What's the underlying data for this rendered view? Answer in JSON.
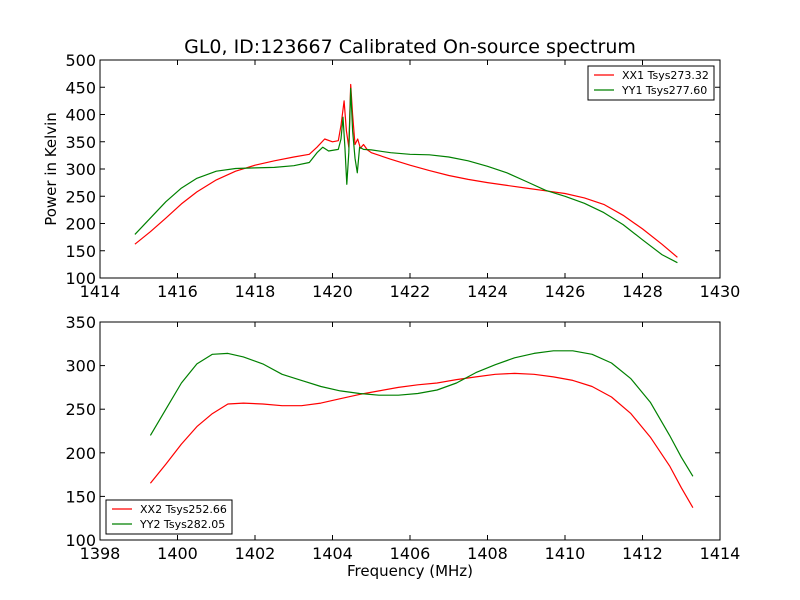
{
  "figure_title": "GL0, ID:123667 Calibrated On-source spectrum",
  "chart_data": [
    {
      "type": "line",
      "title": "GL0, ID:123667 Calibrated On-source spectrum",
      "xlabel": "",
      "ylabel": "Power in Kelvin",
      "xlim": [
        1414,
        1430
      ],
      "ylim": [
        100,
        500
      ],
      "xticks": [
        1414,
        1416,
        1418,
        1420,
        1422,
        1424,
        1426,
        1428,
        1430
      ],
      "yticks": [
        100,
        150,
        200,
        250,
        300,
        350,
        400,
        450,
        500
      ],
      "legend": "top-right",
      "grid": false,
      "series": [
        {
          "name": "XX1 Tsys273.32",
          "color": "#ff0000",
          "points": [
            [
              1414.9,
              162
            ],
            [
              1415.3,
              185
            ],
            [
              1415.7,
              210
            ],
            [
              1416.1,
              236
            ],
            [
              1416.5,
              258
            ],
            [
              1417.0,
              280
            ],
            [
              1417.5,
              296
            ],
            [
              1418.0,
              307
            ],
            [
              1418.5,
              315
            ],
            [
              1419.0,
              322
            ],
            [
              1419.4,
              327
            ],
            [
              1419.6,
              340
            ],
            [
              1419.8,
              355
            ],
            [
              1420.0,
              350
            ],
            [
              1420.15,
              352
            ],
            [
              1420.22,
              380
            ],
            [
              1420.3,
              425
            ],
            [
              1420.36,
              370
            ],
            [
              1420.42,
              340
            ],
            [
              1420.47,
              455
            ],
            [
              1420.52,
              400
            ],
            [
              1420.58,
              345
            ],
            [
              1420.65,
              355
            ],
            [
              1420.72,
              338
            ],
            [
              1420.8,
              345
            ],
            [
              1420.9,
              335
            ],
            [
              1421.0,
              330
            ],
            [
              1421.5,
              318
            ],
            [
              1422.0,
              307
            ],
            [
              1422.5,
              297
            ],
            [
              1423.0,
              288
            ],
            [
              1423.5,
              281
            ],
            [
              1424.0,
              275
            ],
            [
              1424.5,
              270
            ],
            [
              1425.0,
              265
            ],
            [
              1425.5,
              260
            ],
            [
              1426.0,
              255
            ],
            [
              1426.5,
              247
            ],
            [
              1427.0,
              235
            ],
            [
              1427.5,
              215
            ],
            [
              1428.0,
              190
            ],
            [
              1428.5,
              162
            ],
            [
              1428.9,
              138
            ]
          ]
        },
        {
          "name": "YY1 Tsys277.60",
          "color": "#008000",
          "points": [
            [
              1414.9,
              180
            ],
            [
              1415.3,
              210
            ],
            [
              1415.7,
              240
            ],
            [
              1416.1,
              265
            ],
            [
              1416.5,
              283
            ],
            [
              1417.0,
              296
            ],
            [
              1417.5,
              301
            ],
            [
              1418.0,
              302
            ],
            [
              1418.5,
              303
            ],
            [
              1419.0,
              306
            ],
            [
              1419.4,
              312
            ],
            [
              1419.6,
              330
            ],
            [
              1419.75,
              340
            ],
            [
              1419.9,
              333
            ],
            [
              1420.15,
              336
            ],
            [
              1420.22,
              355
            ],
            [
              1420.27,
              395
            ],
            [
              1420.32,
              340
            ],
            [
              1420.37,
              272
            ],
            [
              1420.42,
              330
            ],
            [
              1420.47,
              448
            ],
            [
              1420.52,
              370
            ],
            [
              1420.58,
              320
            ],
            [
              1420.64,
              293
            ],
            [
              1420.7,
              340
            ],
            [
              1420.8,
              336
            ],
            [
              1421.0,
              335
            ],
            [
              1421.5,
              330
            ],
            [
              1422.0,
              327
            ],
            [
              1422.5,
              326
            ],
            [
              1423.0,
              322
            ],
            [
              1423.5,
              315
            ],
            [
              1424.0,
              305
            ],
            [
              1424.5,
              293
            ],
            [
              1425.0,
              277
            ],
            [
              1425.5,
              261
            ],
            [
              1426.0,
              250
            ],
            [
              1426.5,
              237
            ],
            [
              1427.0,
              220
            ],
            [
              1427.5,
              198
            ],
            [
              1428.0,
              170
            ],
            [
              1428.5,
              143
            ],
            [
              1428.9,
              128
            ]
          ]
        }
      ]
    },
    {
      "type": "line",
      "title": "",
      "xlabel": "Frequency (MHz)",
      "ylabel": "",
      "xlim": [
        1398,
        1414
      ],
      "ylim": [
        100,
        350
      ],
      "xticks": [
        1398,
        1400,
        1402,
        1404,
        1406,
        1408,
        1410,
        1412,
        1414
      ],
      "yticks": [
        100,
        150,
        200,
        250,
        300,
        350
      ],
      "legend": "bottom-left",
      "grid": false,
      "series": [
        {
          "name": "XX2 Tsys252.66",
          "color": "#ff0000",
          "points": [
            [
              1399.3,
              165
            ],
            [
              1399.7,
              187
            ],
            [
              1400.1,
              210
            ],
            [
              1400.5,
              230
            ],
            [
              1400.9,
              245
            ],
            [
              1401.3,
              256
            ],
            [
              1401.7,
              257
            ],
            [
              1402.2,
              256
            ],
            [
              1402.7,
              254
            ],
            [
              1403.2,
              254
            ],
            [
              1403.7,
              257
            ],
            [
              1404.2,
              262
            ],
            [
              1404.7,
              267
            ],
            [
              1405.2,
              271
            ],
            [
              1405.7,
              275
            ],
            [
              1406.2,
              278
            ],
            [
              1406.7,
              280
            ],
            [
              1407.2,
              284
            ],
            [
              1407.7,
              287
            ],
            [
              1408.2,
              290
            ],
            [
              1408.7,
              291
            ],
            [
              1409.2,
              290
            ],
            [
              1409.7,
              287
            ],
            [
              1410.2,
              283
            ],
            [
              1410.7,
              276
            ],
            [
              1411.2,
              264
            ],
            [
              1411.7,
              245
            ],
            [
              1412.2,
              218
            ],
            [
              1412.7,
              185
            ],
            [
              1413.0,
              160
            ],
            [
              1413.3,
              137
            ]
          ]
        },
        {
          "name": "YY2 Tsys282.05",
          "color": "#008000",
          "points": [
            [
              1399.3,
              220
            ],
            [
              1399.7,
              250
            ],
            [
              1400.1,
              280
            ],
            [
              1400.5,
              302
            ],
            [
              1400.9,
              313
            ],
            [
              1401.3,
              314
            ],
            [
              1401.7,
              310
            ],
            [
              1402.2,
              302
            ],
            [
              1402.7,
              290
            ],
            [
              1403.2,
              283
            ],
            [
              1403.7,
              276
            ],
            [
              1404.2,
              271
            ],
            [
              1404.7,
              268
            ],
            [
              1405.2,
              266
            ],
            [
              1405.7,
              266
            ],
            [
              1406.2,
              268
            ],
            [
              1406.7,
              272
            ],
            [
              1407.2,
              280
            ],
            [
              1407.7,
              292
            ],
            [
              1408.2,
              301
            ],
            [
              1408.7,
              309
            ],
            [
              1409.2,
              314
            ],
            [
              1409.7,
              317
            ],
            [
              1410.2,
              317
            ],
            [
              1410.7,
              313
            ],
            [
              1411.2,
              303
            ],
            [
              1411.7,
              285
            ],
            [
              1412.2,
              258
            ],
            [
              1412.7,
              220
            ],
            [
              1413.0,
              195
            ],
            [
              1413.3,
              173
            ]
          ]
        }
      ]
    }
  ]
}
